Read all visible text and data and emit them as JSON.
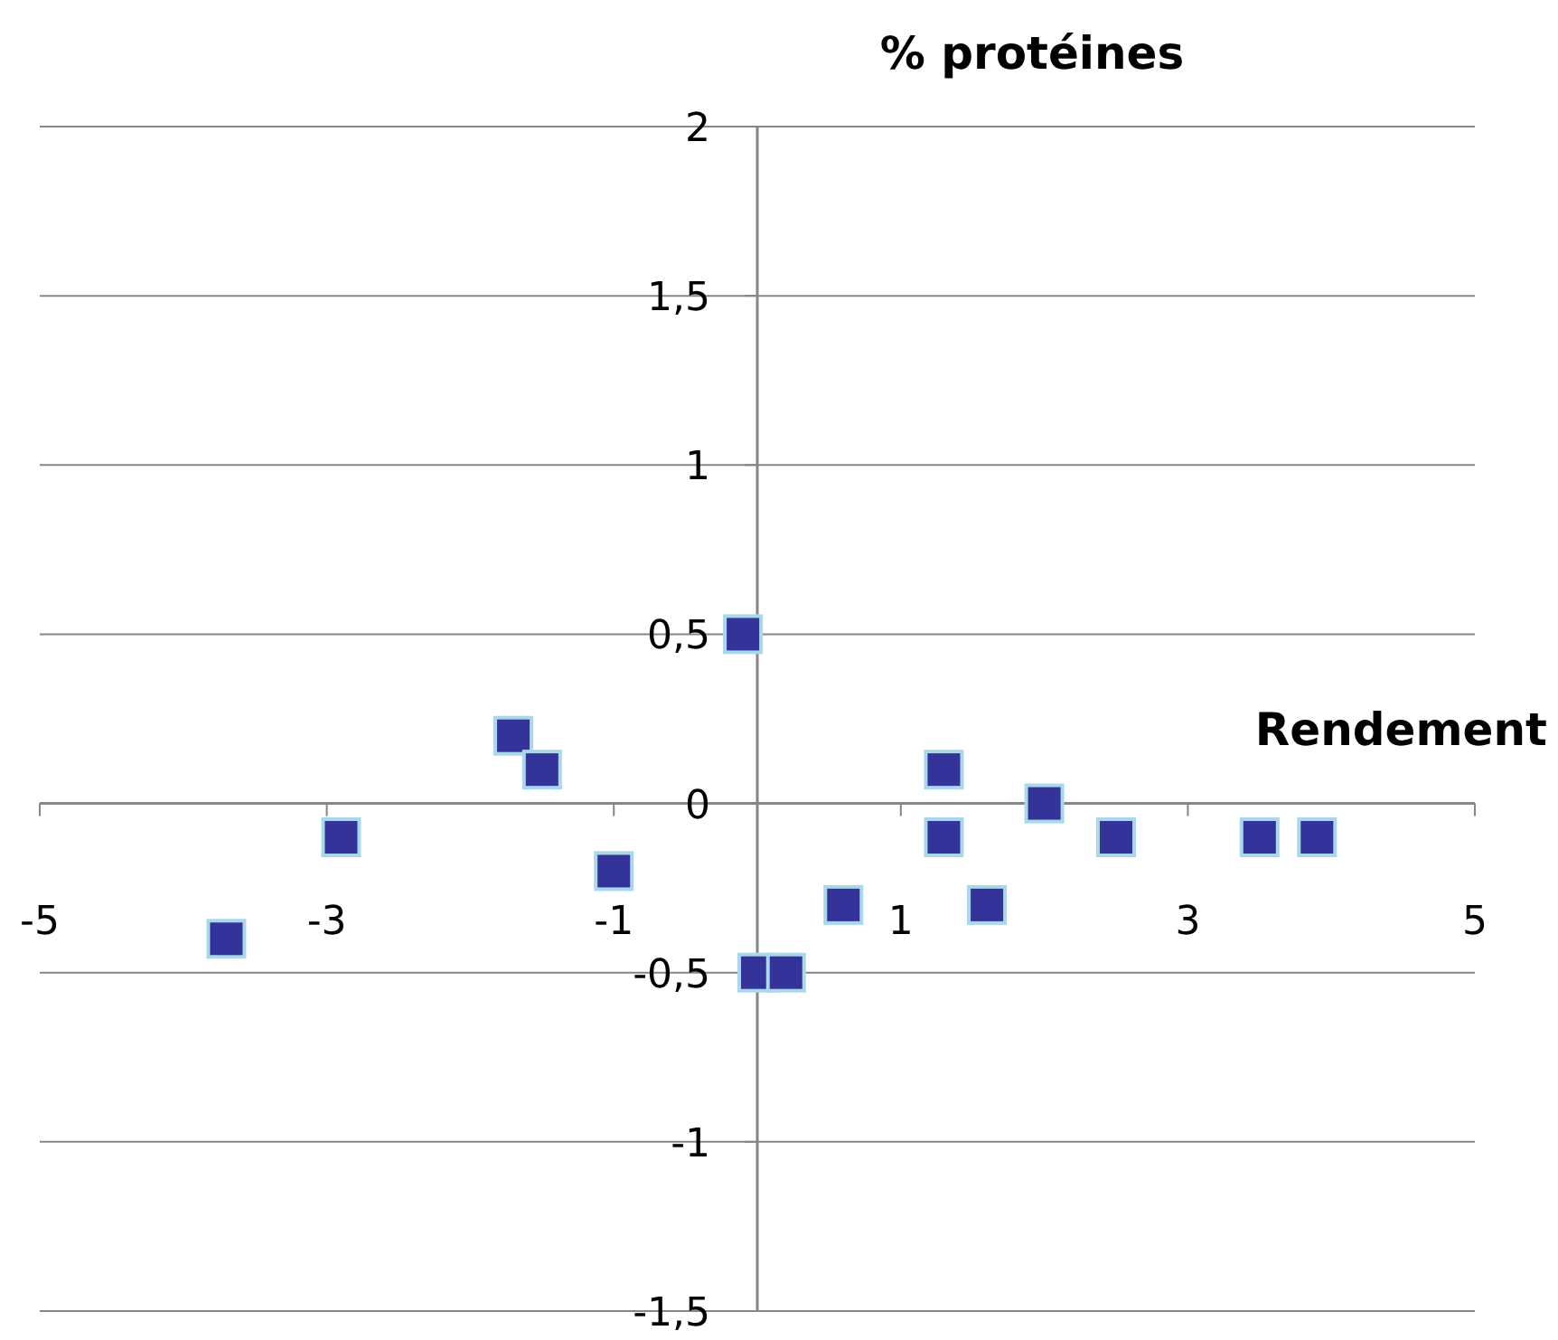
{
  "chart_data": {
    "type": "scatter",
    "xlabel": "Rendement",
    "ylabel": "% protéines",
    "x": [
      -3.7,
      -2.9,
      -1.7,
      -1.5,
      -1,
      -0.1,
      0,
      0.2,
      0.6,
      1.3,
      1.3,
      1.6,
      2,
      2.5,
      3.5,
      3.9
    ],
    "series": [
      {
        "color": "#333399",
        "values": [
          -0.4,
          -0.1,
          0.2,
          0.1,
          -0.2,
          0.5,
          -0.5,
          -0.5,
          -0.3,
          0.1,
          -0.1,
          -0.3,
          0,
          -0.1,
          -0.1,
          -0.1
        ]
      }
    ],
    "xlim": [
      -5,
      5
    ],
    "xticks": [
      -5,
      -3,
      -1,
      1,
      3,
      5
    ],
    "ylim": [
      -1.5,
      2
    ],
    "yticks": [
      {
        "value": -1.5,
        "label": "-1,5"
      },
      {
        "value": -1,
        "label": "-1"
      },
      {
        "value": -0.5,
        "label": "-0,5"
      },
      {
        "value": 0,
        "label": "0"
      },
      {
        "value": 0.5,
        "label": "0,5"
      },
      {
        "value": 1,
        "label": "1"
      },
      {
        "value": 1.5,
        "label": "1,5"
      },
      {
        "value": 2,
        "label": "2"
      }
    ],
    "grid": "y",
    "marker": "square"
  }
}
